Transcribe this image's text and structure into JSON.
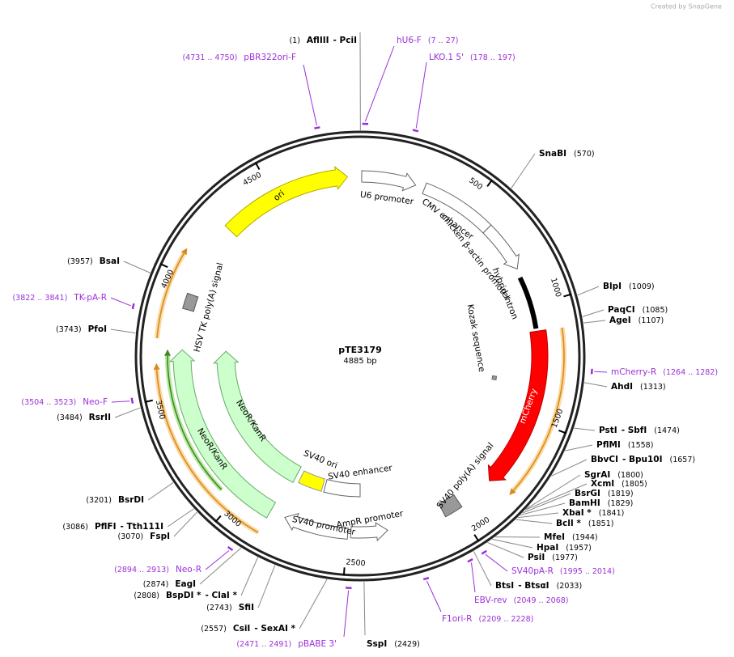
{
  "attribution": "Created by SnapGene",
  "map": {
    "name": "pTE3179",
    "length": {
      "value": 4885,
      "label": "4885 bp"
    },
    "ruler": [
      500,
      1000,
      1500,
      2000,
      2500,
      3000,
      3500,
      4000,
      4500
    ],
    "features": [
      {
        "label": "ori"
      },
      {
        "label": "U6 promoter"
      },
      {
        "label": "CMV enhancer"
      },
      {
        "label": "chicken β-actin promoter"
      },
      {
        "label": "hybrid intron"
      },
      {
        "label": "Kozak sequence"
      },
      {
        "label": "mCherry"
      },
      {
        "label": "SV40 poly(A) signal"
      },
      {
        "label": "AmpR promoter"
      },
      {
        "label": "SV40 promoter"
      },
      {
        "label": "SV40 ori"
      },
      {
        "label": "SV40 enhancer"
      },
      {
        "label": "NeoR/KanR"
      },
      {
        "label": "NeoR/KanR"
      },
      {
        "label": "HSV TK poly(A) signal"
      }
    ],
    "enzymes": [
      {
        "names": [
          "AflIII",
          "- PciI"
        ],
        "site": {
          "value": 1,
          "label": "(1)"
        }
      },
      {
        "names": [
          "SnaBI"
        ],
        "site": {
          "value": 570,
          "label": "(570)"
        }
      },
      {
        "names": [
          "BlpI"
        ],
        "site": {
          "value": 1009,
          "label": "(1009)"
        }
      },
      {
        "names": [
          "PaqCI"
        ],
        "site": {
          "value": 1085,
          "label": "(1085)"
        }
      },
      {
        "names": [
          "AgeI"
        ],
        "site": {
          "value": 1107,
          "label": "(1107)"
        }
      },
      {
        "names": [
          "AhdI"
        ],
        "site": {
          "value": 1313,
          "label": "(1313)"
        }
      },
      {
        "names": [
          "PstI",
          "- SbfI"
        ],
        "site": {
          "value": 1474,
          "label": "(1474)"
        }
      },
      {
        "names": [
          "PflMI"
        ],
        "site": {
          "value": 1558,
          "label": "(1558)"
        }
      },
      {
        "names": [
          "BbvCI",
          "- Bpu10I"
        ],
        "site": {
          "value": 1657,
          "label": "(1657)"
        }
      },
      {
        "names": [
          "SgrAI"
        ],
        "site": {
          "value": 1800,
          "label": "(1800)"
        }
      },
      {
        "names": [
          "XcmI"
        ],
        "site": {
          "value": 1805,
          "label": "(1805)"
        }
      },
      {
        "names": [
          "BsrGI"
        ],
        "site": {
          "value": 1819,
          "label": "(1819)"
        }
      },
      {
        "names": [
          "BamHI"
        ],
        "site": {
          "value": 1829,
          "label": "(1829)"
        }
      },
      {
        "names": [
          "XbaI *"
        ],
        "site": {
          "value": 1841,
          "label": "(1841)"
        }
      },
      {
        "names": [
          "BclI *"
        ],
        "site": {
          "value": 1851,
          "label": "(1851)"
        }
      },
      {
        "names": [
          "MfeI"
        ],
        "site": {
          "value": 1944,
          "label": "(1944)"
        }
      },
      {
        "names": [
          "HpaI"
        ],
        "site": {
          "value": 1957,
          "label": "(1957)"
        }
      },
      {
        "names": [
          "PsiI"
        ],
        "site": {
          "value": 1977,
          "label": "(1977)"
        }
      },
      {
        "names": [
          "BtsI",
          "- BtsαI"
        ],
        "site": {
          "value": 2033,
          "label": "(2033)"
        }
      },
      {
        "names": [
          "SspI"
        ],
        "site": {
          "value": 2429,
          "label": "(2429)"
        }
      },
      {
        "names": [
          "CsiI",
          "- SexAI *"
        ],
        "site": {
          "value": 2557,
          "label": "(2557)"
        }
      },
      {
        "names": [
          "SfiI"
        ],
        "site": {
          "value": 2743,
          "label": "(2743)"
        }
      },
      {
        "names": [
          "BspDI *",
          "- ClaI *"
        ],
        "site": {
          "value": 2808,
          "label": "(2808)"
        }
      },
      {
        "names": [
          "EagI"
        ],
        "site": {
          "value": 2874,
          "label": "(2874)"
        }
      },
      {
        "names": [
          "FspI"
        ],
        "site": {
          "value": 3070,
          "label": "(3070)"
        }
      },
      {
        "names": [
          "PflFI",
          "- Tth111I"
        ],
        "site": {
          "value": 3086,
          "label": "(3086)"
        }
      },
      {
        "names": [
          "BsrDI"
        ],
        "site": {
          "value": 3201,
          "label": "(3201)"
        }
      },
      {
        "names": [
          "RsrII"
        ],
        "site": {
          "value": 3484,
          "label": "(3484)"
        }
      },
      {
        "names": [
          "PfoI"
        ],
        "site": {
          "value": 3743,
          "label": "(3743)"
        }
      },
      {
        "names": [
          "BsaI"
        ],
        "site": {
          "value": 3957,
          "label": "(3957)"
        }
      }
    ],
    "primers": [
      {
        "name": "hU6-F",
        "start": 7,
        "end": 27,
        "label": "(7 .. 27)"
      },
      {
        "name": "LKO.1 5'",
        "start": 178,
        "end": 197,
        "label": "(178 .. 197)"
      },
      {
        "name": "mCherry-R",
        "start": 1264,
        "end": 1282,
        "label": "(1264 .. 1282)"
      },
      {
        "name": "SV40pA-R",
        "start": 1995,
        "end": 2014,
        "label": "(1995 .. 2014)"
      },
      {
        "name": "EBV-rev",
        "start": 2049,
        "end": 2068,
        "label": "(2049 .. 2068)"
      },
      {
        "name": "F1ori-R",
        "start": 2209,
        "end": 2228,
        "label": "(2209 .. 2228)"
      },
      {
        "name": "pBABE 3'",
        "start": 2471,
        "end": 2491,
        "label": "(2471 .. 2491)"
      },
      {
        "name": "Neo-R",
        "start": 2894,
        "end": 2913,
        "label": "(2894 .. 2913)"
      },
      {
        "name": "Neo-F",
        "start": 3504,
        "end": 3523,
        "label": "(3504 .. 3523)"
      },
      {
        "name": "TK-pA-R",
        "start": 3822,
        "end": 3841,
        "label": "(3822 .. 3841)"
      },
      {
        "name": "pBR322ori-F",
        "start": 4731,
        "end": 4750,
        "label": "(4731 .. 4750)"
      }
    ]
  }
}
